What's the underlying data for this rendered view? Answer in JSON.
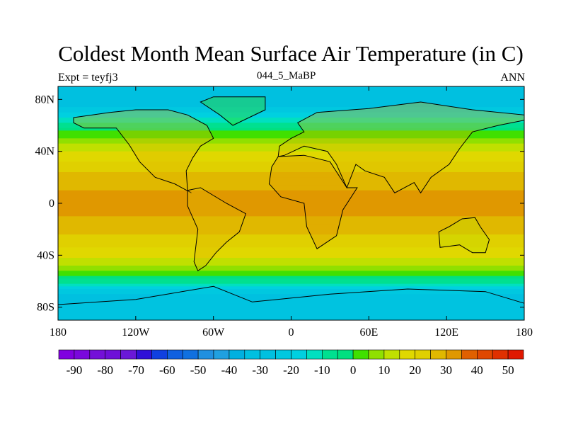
{
  "chart_data": {
    "type": "heatmap",
    "title": "Coldest Month Mean Surface Air Temperature (in C)",
    "left_string": "Expt = teyfj3",
    "center_string": "044_5_MaBP",
    "right_string": "ANN",
    "x_ticks": [
      "180",
      "120W",
      "60W",
      "0",
      "60E",
      "120E",
      "180"
    ],
    "x_tick_values": [
      -180,
      -120,
      -60,
      0,
      60,
      120,
      180
    ],
    "y_ticks": [
      "80N",
      "40N",
      "0",
      "40S",
      "80S"
    ],
    "y_tick_values": [
      80,
      40,
      0,
      -40,
      -80
    ],
    "xlim": [
      -180,
      180
    ],
    "ylim": [
      -90,
      90
    ],
    "colorbar": {
      "labels": [
        "-90",
        "-80",
        "-70",
        "-60",
        "-50",
        "-40",
        "-30",
        "-20",
        "-10",
        "0",
        "10",
        "20",
        "30",
        "40",
        "50"
      ],
      "levels_min": -90,
      "levels_max": 50,
      "levels_step": 5,
      "colors": [
        "#8000e0",
        "#7a08dc",
        "#7410d8",
        "#6e10d8",
        "#6a18d8",
        "#3010d8",
        "#1040e0",
        "#1060e0",
        "#1070e0",
        "#2090e0",
        "#20a0e0",
        "#00b0e0",
        "#00c0e0",
        "#00c0e0",
        "#00c8e0",
        "#00d0e0",
        "#00e0c0",
        "#00e090",
        "#00e080",
        "#40e000",
        "#90e000",
        "#c0e000",
        "#e0d800",
        "#e0d000",
        "#e0b800",
        "#e09800",
        "#e06000",
        "#e04800",
        "#e03000",
        "#e01800"
      ]
    },
    "zonal_profile": {
      "lat": [
        90,
        80,
        72,
        62,
        55,
        48,
        40,
        30,
        20,
        10,
        0,
        -10,
        -20,
        -30,
        -40,
        -48,
        -55,
        -60,
        -66,
        -72,
        -80,
        -90
      ],
      "temp": [
        -35,
        -32,
        -22,
        -10,
        0,
        8,
        15,
        22,
        27,
        30,
        32,
        30,
        27,
        22,
        16,
        10,
        2,
        -8,
        -20,
        -28,
        -30,
        -32
      ]
    }
  }
}
